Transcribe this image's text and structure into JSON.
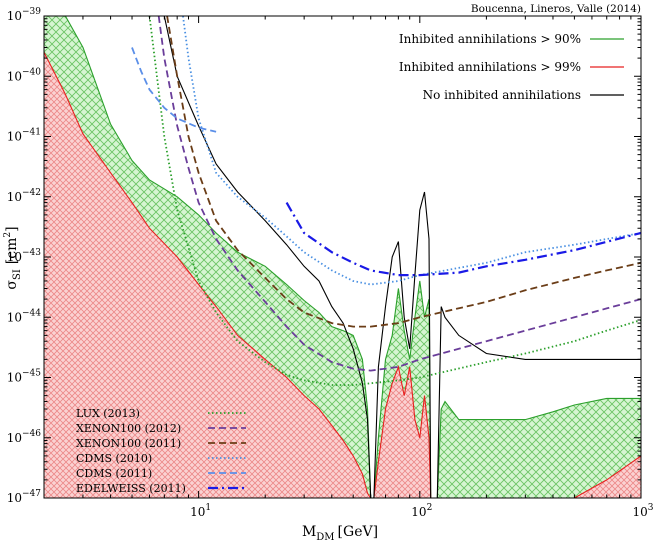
{
  "chart_data": {
    "type": "line",
    "annotation": "Boucenna, Lineros, Valle (2014)",
    "xlabel": "M",
    "xlabel_sub": "DM",
    "xlabel_unit": "[GeV]",
    "ylabel": "σ",
    "ylabel_sub": "SI",
    "ylabel_unit": "[cm",
    "ylabel_unit_sup": "2",
    "ylabel_unit_close": "]",
    "x_scale": "log",
    "y_scale": "log",
    "xlim": [
      2,
      1000
    ],
    "ylim": [
      1e-47,
      1e-39
    ],
    "x_ticks": [
      {
        "value": 10,
        "base": "10",
        "exp": "1"
      },
      {
        "value": 100,
        "base": "10",
        "exp": "2"
      },
      {
        "value": 1000,
        "base": "10",
        "exp": "3"
      }
    ],
    "y_ticks": [
      {
        "value": 1e-39,
        "base": "10",
        "exp": "−39"
      },
      {
        "value": 1e-40,
        "base": "10",
        "exp": "−40"
      },
      {
        "value": 1e-41,
        "base": "10",
        "exp": "−41"
      },
      {
        "value": 1e-42,
        "base": "10",
        "exp": "−42"
      },
      {
        "value": 1e-43,
        "base": "10",
        "exp": "−43"
      },
      {
        "value": 1e-44,
        "base": "10",
        "exp": "−44"
      },
      {
        "value": 1e-45,
        "base": "10",
        "exp": "−45"
      },
      {
        "value": 1e-46,
        "base": "10",
        "exp": "−46"
      },
      {
        "value": 1e-47,
        "base": "10",
        "exp": "−47"
      }
    ],
    "legend_top_placement": "top-right",
    "legend_bottom_placement": "bottom-left",
    "regions": [
      {
        "name": "Inhibited annihilations > 90%",
        "color": "#2ca02c",
        "fill": "#a9e8a4",
        "boundary": [
          [
            2,
            1e-39
          ],
          [
            2.5,
            1e-39
          ],
          [
            3,
            3e-40
          ],
          [
            4,
            1.6e-41
          ],
          [
            5,
            4e-42
          ],
          [
            6,
            1.9e-42
          ],
          [
            8,
            1e-42
          ],
          [
            10,
            5e-43
          ],
          [
            12,
            2.5e-43
          ],
          [
            15,
            1.2e-43
          ],
          [
            20,
            7e-44
          ],
          [
            25,
            3.5e-44
          ],
          [
            30,
            1.9e-44
          ],
          [
            35,
            1.2e-44
          ],
          [
            40,
            7e-45
          ],
          [
            45,
            6e-45
          ],
          [
            50,
            5e-45
          ],
          [
            55,
            2e-45
          ],
          [
            58,
            3e-46
          ],
          [
            60,
            1e-47
          ],
          [
            62,
            1e-47
          ],
          [
            65,
            1e-46
          ],
          [
            70,
            2e-45
          ],
          [
            75,
            5e-45
          ],
          [
            80,
            3e-44
          ],
          [
            85,
            6e-45
          ],
          [
            90,
            2e-45
          ],
          [
            95,
            1e-44
          ],
          [
            100,
            4e-44
          ],
          [
            105,
            1e-44
          ],
          [
            110,
            2e-44
          ],
          [
            112,
            1e-47
          ],
          [
            118,
            1e-47
          ],
          [
            120,
            1e-47
          ],
          [
            125,
            3e-46
          ],
          [
            130,
            4e-46
          ],
          [
            150,
            2e-46
          ],
          [
            200,
            2e-46
          ],
          [
            300,
            2e-46
          ],
          [
            400,
            2.7e-46
          ],
          [
            500,
            3.5e-46
          ],
          [
            700,
            4.5e-46
          ],
          [
            1000,
            4.5e-46
          ]
        ]
      },
      {
        "name": "Inhibited annihilations > 99%",
        "color": "#e82020",
        "fill": "#f7b4b4",
        "boundary": [
          [
            2,
            2.5e-40
          ],
          [
            2.5,
            5e-41
          ],
          [
            3,
            1.1e-41
          ],
          [
            4,
            2.5e-42
          ],
          [
            5,
            8e-43
          ],
          [
            6,
            3e-43
          ],
          [
            8,
            1e-43
          ],
          [
            10,
            3.5e-44
          ],
          [
            12,
            1.5e-44
          ],
          [
            15,
            5e-45
          ],
          [
            20,
            2e-45
          ],
          [
            25,
            1e-45
          ],
          [
            30,
            5e-46
          ],
          [
            35,
            3e-46
          ],
          [
            40,
            1.6e-46
          ],
          [
            45,
            9e-47
          ],
          [
            50,
            5e-47
          ],
          [
            55,
            2.5e-47
          ],
          [
            58,
            1.2e-47
          ],
          [
            60,
            1e-47
          ],
          [
            62,
            1e-47
          ],
          [
            65,
            4e-47
          ],
          [
            70,
            3e-46
          ],
          [
            75,
            8e-46
          ],
          [
            80,
            1.5e-45
          ],
          [
            85,
            5e-46
          ],
          [
            90,
            1.5e-45
          ],
          [
            95,
            2e-46
          ],
          [
            100,
            1e-46
          ],
          [
            105,
            5e-46
          ],
          [
            110,
            1e-46
          ],
          [
            112,
            1e-47
          ],
          [
            500,
            1e-47
          ],
          [
            700,
            2e-47
          ],
          [
            1000,
            5e-47
          ]
        ]
      }
    ],
    "series": [
      {
        "name": "No inhibited annihilations",
        "color": "#000000",
        "dash": "solid",
        "x": [
          7,
          8,
          10,
          12,
          15,
          20,
          25,
          30,
          35,
          40,
          45,
          50,
          55,
          58,
          60,
          62,
          65,
          70,
          75,
          80,
          85,
          90,
          95,
          100,
          105,
          110,
          112,
          118,
          120,
          125,
          130,
          150,
          200,
          300,
          500,
          1000
        ],
        "y": [
          1e-39,
          1e-40,
          1.5e-41,
          3.5e-42,
          1.2e-42,
          4e-43,
          1.6e-43,
          7e-44,
          4e-44,
          1.5e-44,
          8e-45,
          3e-45,
          8e-46,
          2e-46,
          1e-47,
          1e-47,
          1.5e-45,
          1.5e-44,
          1e-43,
          1.8e-43,
          1e-44,
          3e-45,
          5e-44,
          6e-43,
          1.2e-42,
          2e-43,
          1e-47,
          1e-47,
          1e-47,
          1.5e-44,
          1e-44,
          5e-45,
          2.5e-45,
          2e-45,
          2e-45,
          2e-45
        ]
      },
      {
        "name": "LUX (2013)",
        "color": "#2ca02c",
        "dash": "dotted",
        "x": [
          6,
          7,
          8,
          10,
          12,
          15,
          20,
          25,
          30,
          40,
          50,
          60,
          80,
          100,
          200,
          300,
          500,
          700,
          1000
        ],
        "y": [
          1e-39,
          1e-41,
          6e-43,
          4e-44,
          1.2e-44,
          4e-45,
          1.8e-45,
          1.1e-45,
          9e-46,
          7.5e-46,
          7.5e-46,
          8e-46,
          9e-46,
          1e-45,
          1.8e-45,
          2.5e-45,
          4e-45,
          6e-45,
          9e-45
        ]
      },
      {
        "name": "XENON100 (2012)",
        "color": "#6a3d9a",
        "dash": "dashed",
        "x": [
          6.6,
          7,
          8,
          9,
          10,
          12,
          15,
          20,
          25,
          30,
          40,
          50,
          60,
          80,
          100,
          200,
          300,
          500,
          700,
          1000
        ],
        "y": [
          1e-39,
          2e-40,
          1.5e-41,
          3e-42,
          8e-43,
          2e-43,
          6e-44,
          1.8e-44,
          7e-45,
          3.5e-45,
          1.8e-45,
          1.4e-45,
          1.3e-45,
          1.5e-45,
          2e-45,
          4e-45,
          6e-45,
          1e-44,
          1.4e-44,
          2e-44
        ]
      },
      {
        "name": "XENON100 (2011)",
        "color": "#6b3d17",
        "dash": "dashed",
        "x": [
          7.2,
          8,
          9,
          10,
          12,
          15,
          20,
          25,
          30,
          40,
          50,
          60,
          80,
          100,
          200,
          300,
          500,
          700,
          1000
        ],
        "y": [
          1e-39,
          1e-40,
          1e-41,
          2.5e-42,
          4e-43,
          1.3e-43,
          4.5e-44,
          2e-44,
          1.2e-44,
          8e-45,
          7e-45,
          7e-45,
          8e-45,
          1e-44,
          1.8e-44,
          2.8e-44,
          4.5e-44,
          6e-44,
          8e-44
        ]
      },
      {
        "name": "CDMS (2010)",
        "color": "#4a90e2",
        "dash": "dotted",
        "x": [
          8.5,
          9,
          10,
          12,
          15,
          20,
          25,
          30,
          40,
          50,
          60,
          80,
          100,
          200,
          300,
          500,
          1000
        ],
        "y": [
          1e-39,
          2e-40,
          2e-41,
          2.5e-42,
          1e-42,
          4.5e-43,
          2.2e-43,
          1.2e-43,
          6e-44,
          4e-44,
          3.5e-44,
          4e-44,
          5e-44,
          8e-44,
          1.2e-43,
          1.6e-43,
          2.5e-43
        ]
      },
      {
        "name": "CDMS (2011)",
        "color": "#5b8fe8",
        "dash": "dashed",
        "x": [
          5,
          5.5,
          6,
          7,
          8,
          10,
          12
        ],
        "y": [
          3e-40,
          1.2e-40,
          6e-41,
          3e-41,
          2e-41,
          1.4e-41,
          1.2e-41
        ]
      },
      {
        "name": "EDELWEISS (2011)",
        "color": "#1a1ae6",
        "dash": "dashdot",
        "x": [
          25,
          30,
          40,
          50,
          60,
          80,
          100,
          150,
          200,
          300,
          500,
          1000
        ],
        "y": [
          8e-43,
          2.5e-43,
          1.2e-43,
          8e-44,
          6e-44,
          5e-44,
          5e-44,
          5.5e-44,
          7e-44,
          9e-44,
          1.3e-43,
          2.5e-43
        ]
      }
    ]
  }
}
